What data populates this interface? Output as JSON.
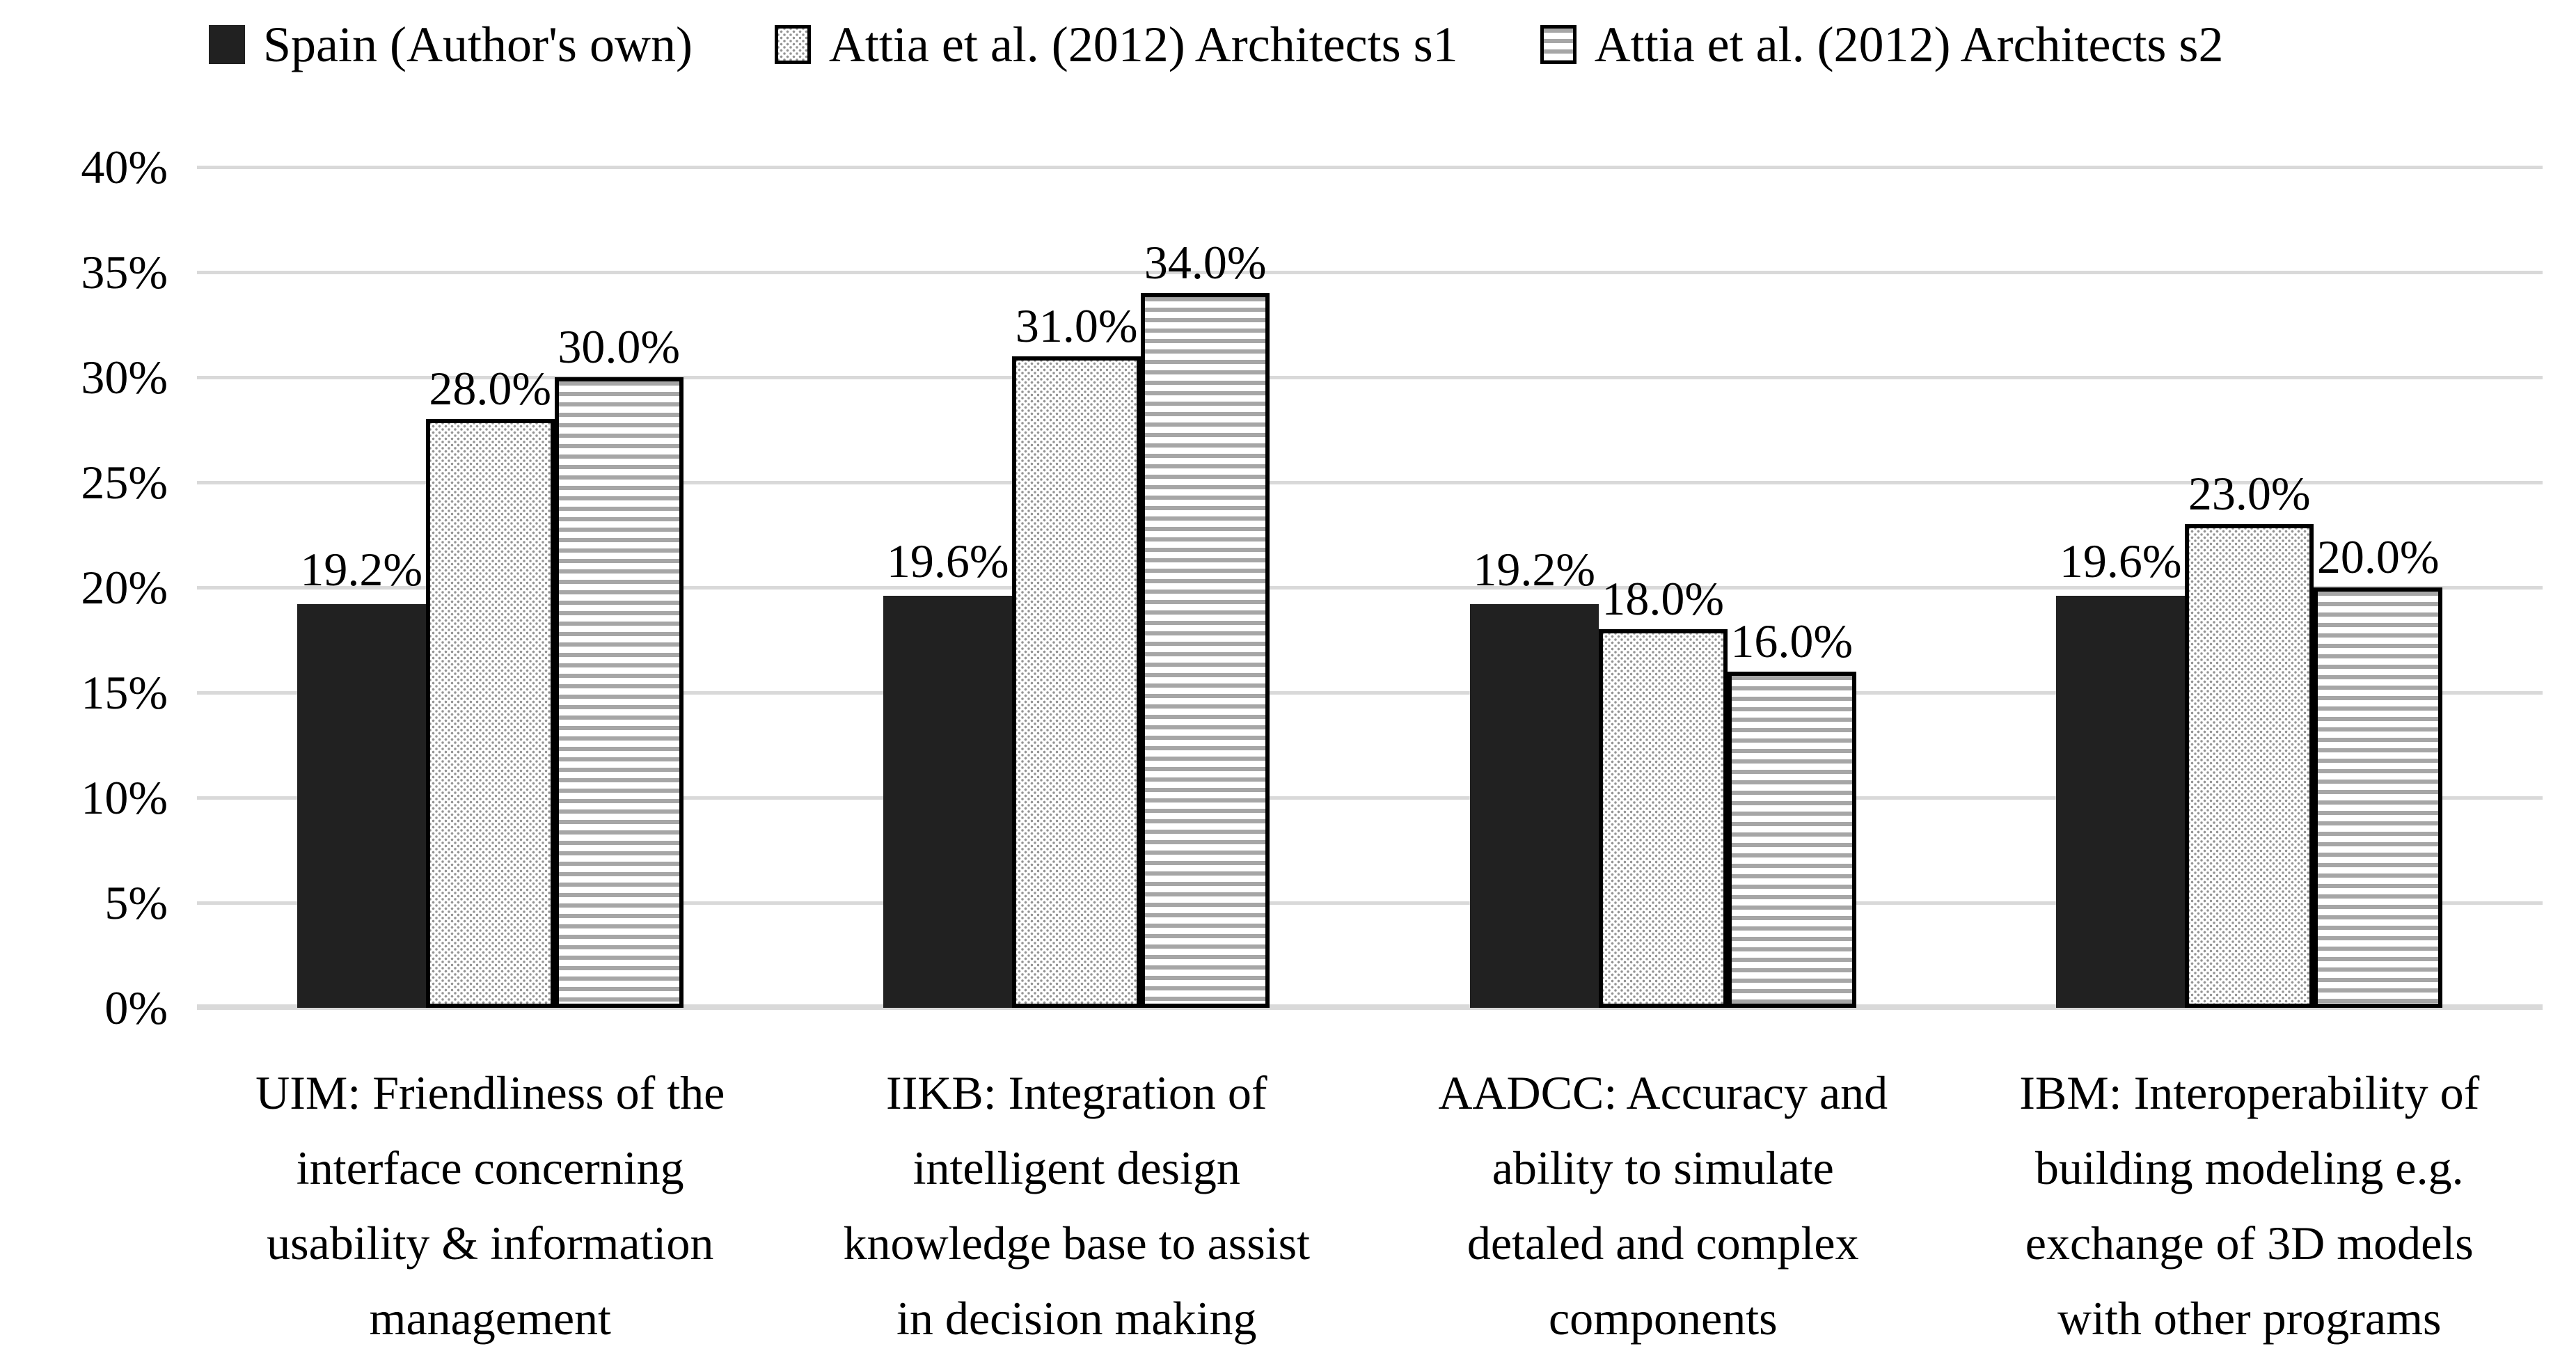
{
  "figure": {
    "background": "#ffffff"
  },
  "chart_data": {
    "type": "bar",
    "title": "",
    "xlabel": "",
    "ylabel": "",
    "legend_position": "top",
    "grid": true,
    "y_axis": {
      "min": 0,
      "max": 40,
      "step": 5,
      "ticks": [
        "0%",
        "5%",
        "10%",
        "15%",
        "20%",
        "25%",
        "30%",
        "35%",
        "40%"
      ]
    },
    "categories": [
      "UIM: Friendliness of the interface concerning usability & information management",
      "IIKB: Integration of intelligent design knowledge base to assist in decision making",
      "AADCC: Accuracy and ability to simulate detaled and complex components",
      "IBM: Interoperability of building modeling e.g. exchange of 3D models with other programs"
    ],
    "categories_lines": [
      [
        "UIM: Friendliness of the",
        "interface concerning",
        "usability & information",
        "management"
      ],
      [
        "IIKB: Integration of",
        "intelligent design",
        "knowledge base to assist",
        "in decision making"
      ],
      [
        "AADCC: Accuracy and",
        "ability to simulate",
        "detaled and complex",
        "components"
      ],
      [
        "IBM: Interoperability of",
        "building modeling e.g.",
        "exchange of 3D models",
        "with other programs"
      ]
    ],
    "series": [
      {
        "name": "Spain (Author's own)",
        "pattern": "solid",
        "values": [
          19.2,
          19.6,
          19.2,
          19.6
        ],
        "labels": [
          "19.2%",
          "19.6%",
          "19.2%",
          "19.6%"
        ]
      },
      {
        "name": "Attia et al. (2012) Architects s1",
        "pattern": "dots",
        "values": [
          28.0,
          31.0,
          18.0,
          23.0
        ],
        "labels": [
          "28.0%",
          "31.0%",
          "18.0%",
          "23.0%"
        ]
      },
      {
        "name": "Attia et al. (2012) Architects s2",
        "pattern": "hstripes",
        "values": [
          30.0,
          34.0,
          16.0,
          20.0
        ],
        "labels": [
          "30.0%",
          "34.0%",
          "16.0%",
          "20.0%"
        ]
      }
    ],
    "colors": {
      "solid_bar": "#212121",
      "dots_gray": "#949494",
      "stripes_gray": "#a6a6a6",
      "bar_border": "#000000",
      "gridline": "#d9d9d9",
      "text": "#000000"
    }
  }
}
